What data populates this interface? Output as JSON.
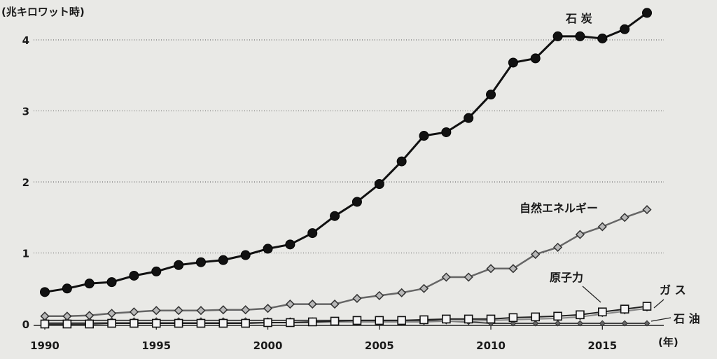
{
  "chart_data": {
    "type": "line",
    "title": "",
    "ylabel": "(兆キロワット時)",
    "xlabel": "(年)",
    "ylim": [
      0,
      4.3
    ],
    "xlim": [
      1990,
      2017
    ],
    "y_ticks": [
      0,
      1,
      2,
      3,
      4
    ],
    "x_ticks": [
      1990,
      1995,
      2000,
      2005,
      2010,
      2015
    ],
    "grid": "horizontal dotted",
    "legend": "labels next to lines",
    "x": [
      1990,
      1991,
      1992,
      1993,
      1994,
      1995,
      1996,
      1997,
      1998,
      1999,
      2000,
      2001,
      2002,
      2003,
      2004,
      2005,
      2006,
      2007,
      2008,
      2009,
      2010,
      2011,
      2012,
      2013,
      2014,
      2015,
      2016,
      2017
    ],
    "series": [
      {
        "name": "石 炭",
        "marker": "circle",
        "values": [
          0.45,
          0.5,
          0.57,
          0.59,
          0.68,
          0.74,
          0.83,
          0.87,
          0.9,
          0.97,
          1.06,
          1.12,
          1.28,
          1.52,
          1.72,
          1.97,
          2.29,
          2.65,
          2.7,
          2.9,
          3.23,
          3.68,
          3.74,
          4.05,
          4.05,
          4.02,
          4.15,
          4.38
        ]
      },
      {
        "name": "自然エネルギー",
        "marker": "diamond",
        "values": [
          0.11,
          0.11,
          0.12,
          0.15,
          0.17,
          0.19,
          0.19,
          0.19,
          0.2,
          0.2,
          0.22,
          0.28,
          0.28,
          0.28,
          0.36,
          0.4,
          0.44,
          0.5,
          0.66,
          0.66,
          0.78,
          0.78,
          0.98,
          1.08,
          1.26,
          1.37,
          1.5,
          1.61
        ]
      },
      {
        "name": "原子力",
        "marker": "square",
        "values": [
          0.0,
          0.0,
          0.0,
          0.01,
          0.01,
          0.01,
          0.01,
          0.01,
          0.01,
          0.01,
          0.02,
          0.02,
          0.03,
          0.04,
          0.05,
          0.05,
          0.05,
          0.06,
          0.07,
          0.07,
          0.07,
          0.09,
          0.1,
          0.11,
          0.13,
          0.17,
          0.21,
          0.25
        ]
      },
      {
        "name": "ガ ス",
        "marker": "small-diamond",
        "values": [
          0.02,
          0.02,
          0.02,
          0.02,
          0.02,
          0.02,
          0.02,
          0.02,
          0.02,
          0.02,
          0.02,
          0.02,
          0.02,
          0.03,
          0.03,
          0.03,
          0.03,
          0.03,
          0.04,
          0.04,
          0.05,
          0.06,
          0.07,
          0.08,
          0.1,
          0.14,
          0.18,
          0.22
        ]
      },
      {
        "name": "石 油",
        "marker": "small-diamond-dark",
        "values": [
          0.05,
          0.05,
          0.05,
          0.05,
          0.05,
          0.05,
          0.05,
          0.05,
          0.05,
          0.05,
          0.05,
          0.05,
          0.05,
          0.05,
          0.05,
          0.05,
          0.05,
          0.05,
          0.04,
          0.03,
          0.01,
          0.01,
          0.01,
          0.01,
          0.01,
          0.01,
          0.01,
          0.01
        ]
      }
    ]
  }
}
